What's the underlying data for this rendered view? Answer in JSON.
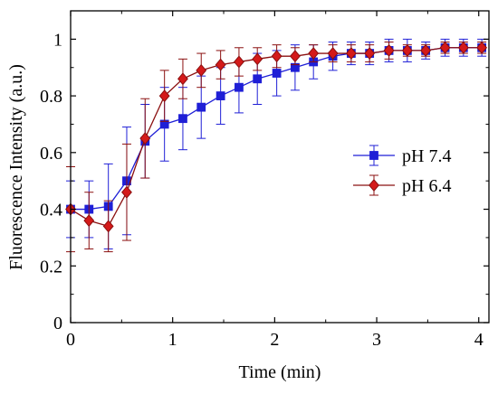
{
  "chart_data": {
    "type": "line",
    "title": "",
    "xlabel": "Time (min)",
    "ylabel": "Fluorescence Intensity (a.u.)",
    "xlim": [
      0,
      4.1
    ],
    "ylim": [
      0,
      1.1
    ],
    "xticks": [
      0,
      1,
      2,
      3,
      4
    ],
    "yticks": [
      0,
      0.2,
      0.4,
      0.6,
      0.8,
      1
    ],
    "xtick_labels": [
      "0",
      "1",
      "2",
      "3",
      "4"
    ],
    "ytick_labels": [
      "0",
      "0.2",
      "0.4",
      "0.6",
      "0.8",
      "1"
    ],
    "grid": false,
    "legend_position": "right",
    "series": [
      {
        "name": "pH 7.4",
        "color": "#1f1fd6",
        "marker": "square",
        "x": [
          0,
          0.18,
          0.37,
          0.55,
          0.73,
          0.92,
          1.1,
          1.28,
          1.47,
          1.65,
          1.83,
          2.02,
          2.2,
          2.38,
          2.57,
          2.75,
          2.93,
          3.12,
          3.3,
          3.48,
          3.67,
          3.85,
          4.03
        ],
        "y": [
          0.4,
          0.4,
          0.41,
          0.5,
          0.64,
          0.7,
          0.72,
          0.76,
          0.8,
          0.83,
          0.86,
          0.88,
          0.9,
          0.92,
          0.94,
          0.95,
          0.95,
          0.96,
          0.96,
          0.96,
          0.97,
          0.97,
          0.97
        ],
        "err": [
          0.1,
          0.1,
          0.15,
          0.19,
          0.13,
          0.13,
          0.11,
          0.11,
          0.1,
          0.09,
          0.09,
          0.08,
          0.08,
          0.06,
          0.05,
          0.04,
          0.04,
          0.04,
          0.04,
          0.03,
          0.03,
          0.03,
          0.03
        ]
      },
      {
        "name": "pH 6.4",
        "color": "#d41a1a",
        "edge_color": "#8b1010",
        "marker": "diamond",
        "x": [
          0,
          0.18,
          0.37,
          0.55,
          0.73,
          0.92,
          1.1,
          1.28,
          1.47,
          1.65,
          1.83,
          2.02,
          2.2,
          2.38,
          2.57,
          2.75,
          2.93,
          3.12,
          3.3,
          3.48,
          3.67,
          3.85,
          4.03
        ],
        "y": [
          0.4,
          0.36,
          0.34,
          0.46,
          0.65,
          0.8,
          0.86,
          0.89,
          0.91,
          0.92,
          0.93,
          0.94,
          0.94,
          0.95,
          0.95,
          0.95,
          0.95,
          0.96,
          0.96,
          0.96,
          0.97,
          0.97,
          0.97
        ],
        "err": [
          0.15,
          0.1,
          0.09,
          0.17,
          0.14,
          0.09,
          0.07,
          0.06,
          0.05,
          0.05,
          0.04,
          0.04,
          0.03,
          0.03,
          0.03,
          0.03,
          0.03,
          0.03,
          0.02,
          0.02,
          0.02,
          0.02,
          0.02
        ]
      }
    ]
  }
}
